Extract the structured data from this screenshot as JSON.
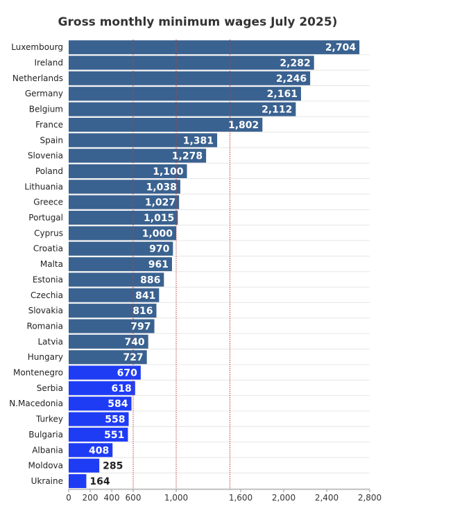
{
  "chart_data": {
    "type": "bar",
    "orientation": "horizontal",
    "title": "Gross monthly minimum wages July 2025)",
    "categories": [
      "Luxembourg",
      "Ireland",
      "Netherlands",
      "Germany",
      "Belgium",
      "France",
      "Spain",
      "Slovenia",
      "Poland",
      "Lithuania",
      "Greece",
      "Portugal",
      "Cyprus",
      "Croatia",
      "Malta",
      "Estonia",
      "Czechia",
      "Slovakia",
      "Romania",
      "Latvia",
      "Hungary",
      "Montenegro",
      "Serbia",
      "N.Macedonia",
      "Turkey",
      "Bulgaria",
      "Albania",
      "Moldova",
      "Ukraine"
    ],
    "values": [
      2704,
      2282,
      2246,
      2161,
      2112,
      1802,
      1381,
      1278,
      1100,
      1038,
      1027,
      1015,
      1000,
      970,
      961,
      886,
      841,
      816,
      797,
      740,
      727,
      670,
      618,
      584,
      558,
      551,
      408,
      285,
      164
    ],
    "value_labels": [
      "2,704",
      "2,282",
      "2,246",
      "2,161",
      "2,112",
      "1,802",
      "1,381",
      "1,278",
      "1,100",
      "1,038",
      "1,027",
      "1,015",
      "1,000",
      "970",
      "961",
      "886",
      "841",
      "816",
      "797",
      "740",
      "727",
      "670",
      "618",
      "584",
      "558",
      "551",
      "408",
      "285",
      "164"
    ],
    "group_a_color": "#3a6290",
    "group_b_color": "#1f3cf5",
    "group_b_start_index": 21,
    "xaxis": {
      "range": [
        0,
        2800
      ],
      "ticks": [
        0,
        200,
        400,
        600,
        1000,
        1600,
        2000,
        2400,
        2800
      ],
      "tick_labels": [
        "0",
        "200",
        "400",
        "600",
        "1,000",
        "1,600",
        "2,000",
        "2,400",
        "2,800"
      ]
    },
    "reference_lines": [
      600,
      1000,
      1500
    ],
    "grid": true,
    "legend": "none"
  }
}
